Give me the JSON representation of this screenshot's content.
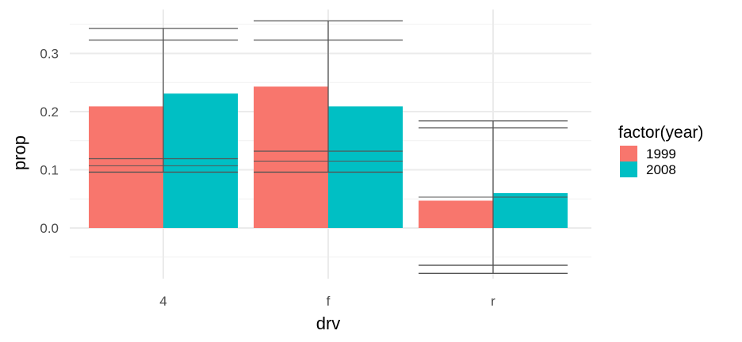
{
  "chart_data": {
    "type": "bar",
    "xlabel": "drv",
    "ylabel": "prop",
    "categories": [
      "4",
      "f",
      "r"
    ],
    "ylim": [
      -0.078,
      0.372
    ],
    "yticks": [
      0.0,
      0.1,
      0.2,
      0.3
    ],
    "ytick_labels": [
      "0.0",
      "0.1",
      "0.2",
      "0.3"
    ],
    "grid": true,
    "legend": {
      "title": "factor(year)",
      "position": "right",
      "entries": [
        "1999",
        "2008"
      ]
    },
    "series": [
      {
        "name": "1999",
        "color": "#F8766D",
        "values": [
          0.209,
          0.243,
          0.047
        ]
      },
      {
        "name": "2008",
        "color": "#00BFC4",
        "values": [
          0.231,
          0.209,
          0.06
        ]
      }
    ],
    "error_bars": [
      {
        "category": "4",
        "center": 0.107,
        "lower": [
          0.096,
          0.119
        ],
        "upper": [
          0.323,
          0.343
        ]
      },
      {
        "category": "f",
        "center": 0.115,
        "lower": [
          0.096,
          0.132
        ],
        "upper": [
          0.323,
          0.356
        ]
      },
      {
        "category": "r",
        "center": 0.053,
        "lower": [
          -0.078,
          -0.064
        ],
        "upper": [
          0.172,
          0.184
        ]
      }
    ],
    "error_color": "#555555"
  }
}
